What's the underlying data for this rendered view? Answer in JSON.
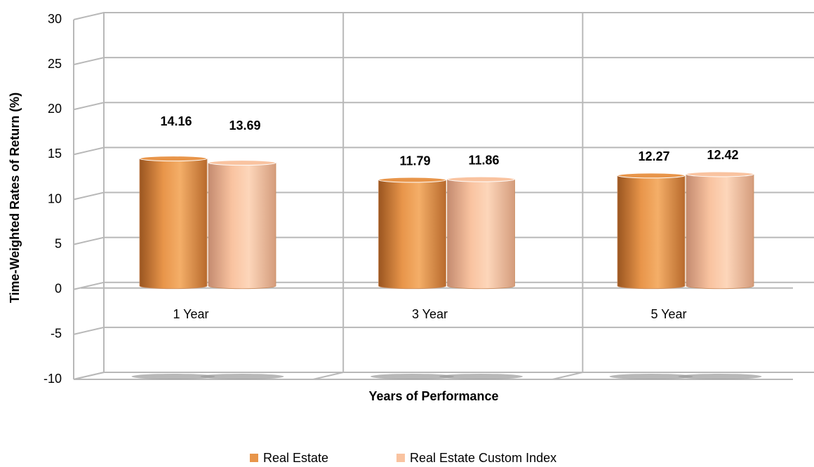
{
  "chart_data": {
    "type": "bar",
    "three_d": true,
    "y_label": "Time-Weighted Rates of Return (%)",
    "x_label": "Years of Performance",
    "categories": [
      "1 Year",
      "3 Year",
      "5 Year"
    ],
    "series": [
      {
        "name": "Real Estate",
        "color": "#e8954a",
        "values": [
          14.16,
          11.79,
          12.27
        ]
      },
      {
        "name": "Real Estate Custom Index",
        "color": "#f9c3a0",
        "values": [
          13.69,
          11.86,
          12.42
        ]
      }
    ],
    "ylim": [
      -10,
      30
    ],
    "yticks": [
      -10,
      -5,
      0,
      5,
      10,
      15,
      20,
      25,
      30
    ],
    "grid": true,
    "legend": "bottom"
  }
}
